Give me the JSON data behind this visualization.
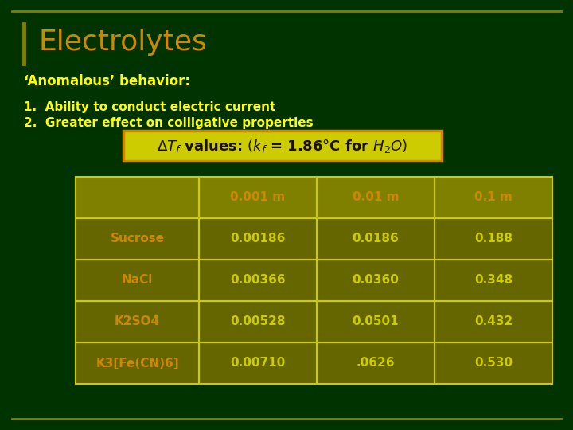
{
  "bg_color": "#003300",
  "title": "Electrolytes",
  "title_color": "#CC8800",
  "subtitle": "‘Anomalous’ behavior:",
  "subtitle_color": "#FFFF00",
  "point1": "1.  Ability to conduct electric current",
  "point2": "2.  Greater effect on colligative properties",
  "points_color": "#FFFF00",
  "box_bg": "#CCCC00",
  "box_border_color": "#CC8800",
  "box_text_color": "#1a1000",
  "table_header": [
    "",
    "0.001 m",
    "0.01 m",
    "0.1 m"
  ],
  "table_rows": [
    [
      "Sucrose",
      "0.00186",
      "0.0186",
      "0.188"
    ],
    [
      "NaCl",
      "0.00366",
      "0.0360",
      "0.348"
    ],
    [
      "K2SO4",
      "0.00528",
      "0.0501",
      "0.432"
    ],
    [
      "K3[Fe(CN)6]",
      "0.00710",
      ".0626",
      "0.530"
    ]
  ],
  "table_header_bg": "#808000",
  "table_row_bg": "#666600",
  "table_border_color": "#CCCC00",
  "table_text_color": "#CCCC00",
  "table_label_color": "#CC8800",
  "table_header_text_color": "#CC8800",
  "border_color": "#808000",
  "left_bar_color": "#808000"
}
